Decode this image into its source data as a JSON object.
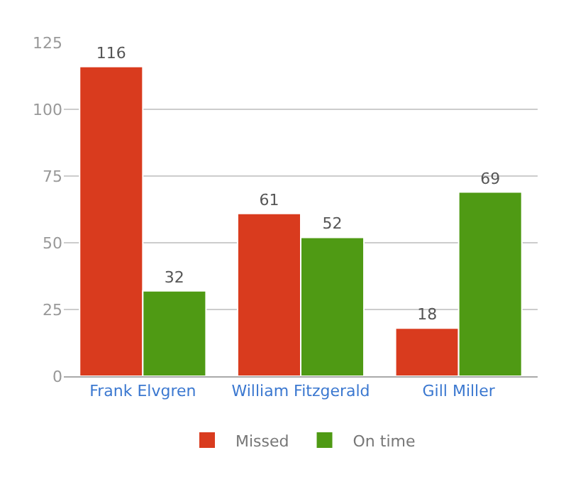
{
  "chart_data": {
    "type": "bar",
    "categories": [
      "Frank Elvgren",
      "William Fitzgerald",
      "Gill Miller"
    ],
    "series": [
      {
        "name": "Missed",
        "color": "#d93b1e",
        "values": [
          116,
          61,
          18
        ]
      },
      {
        "name": "On time",
        "color": "#4f9a14",
        "values": [
          32,
          52,
          69
        ]
      }
    ],
    "ylim": [
      0,
      125
    ],
    "yticks": [
      0,
      25,
      50,
      75,
      100,
      125
    ],
    "grid": "y",
    "legend": "bottom",
    "data_labels": true
  }
}
